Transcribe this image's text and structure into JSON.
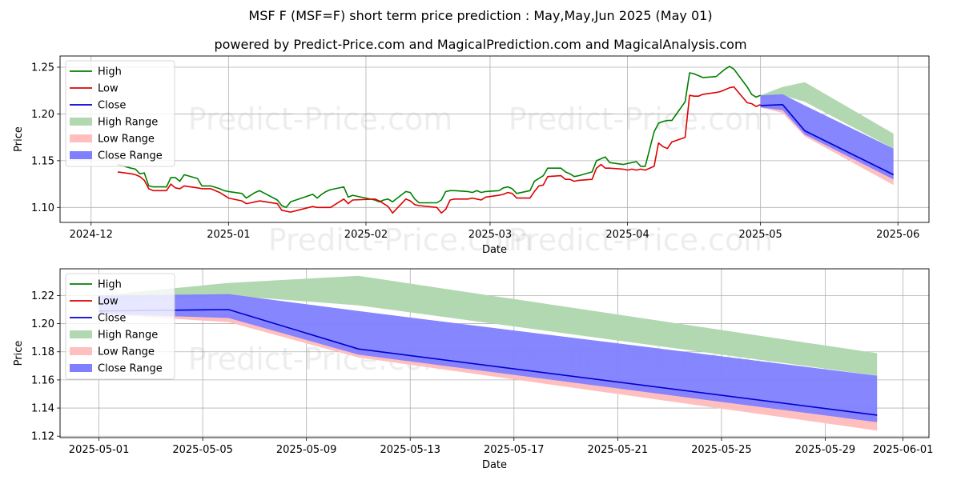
{
  "title": "MSF F (MSF=F) short term price prediction : May,May,Jun 2025 (May 01)",
  "subtitle": "powered by Predict-Price.com and MagicalPrediction.com and MagicalAnalysis.com",
  "watermark": "Predict-Price.com",
  "colors": {
    "high": "#008000",
    "low": "#dd0000",
    "close": "#0000cc",
    "high_range": "#b2d8b2",
    "low_range": "#ffbfbf",
    "close_range": "#7f7fff"
  },
  "chart_data": [
    {
      "type": "line",
      "xlabel": "Date",
      "ylabel": "Price",
      "xlim": [
        "2024-11-24",
        "2025-06-08"
      ],
      "ylim": [
        1.084,
        1.262
      ],
      "xticks": [
        "2024-12",
        "2025-01",
        "2025-02",
        "2025-03",
        "2025-04",
        "2025-05",
        "2025-06"
      ],
      "xtick_dates": [
        "2024-12-01",
        "2025-01-01",
        "2025-02-01",
        "2025-03-01",
        "2025-04-01",
        "2025-05-01",
        "2025-06-01"
      ],
      "yticks": [
        "1.10",
        "1.15",
        "1.20",
        "1.25"
      ],
      "ytick_values": [
        1.1,
        1.15,
        1.2,
        1.25
      ],
      "grid": true,
      "legend": "top-left",
      "legend_entries": [
        "High",
        "Low",
        "Close",
        "High Range",
        "Low Range",
        "Close Range"
      ],
      "series": [
        {
          "name": "High",
          "dates": [
            "2024-12-07",
            "2024-12-10",
            "2024-12-11",
            "2024-12-12",
            "2024-12-13",
            "2024-12-14",
            "2024-12-15",
            "2024-12-18",
            "2024-12-19",
            "2024-12-20",
            "2024-12-21",
            "2024-12-22",
            "2024-12-25",
            "2024-12-26",
            "2024-12-28",
            "2024-12-30",
            "2024-12-31",
            "2025-01-01",
            "2025-01-04",
            "2025-01-05",
            "2025-01-06",
            "2025-01-07",
            "2025-01-08",
            "2025-01-12",
            "2025-01-13",
            "2025-01-14",
            "2025-01-15",
            "2025-01-20",
            "2025-01-21",
            "2025-01-22",
            "2025-01-23",
            "2025-01-24",
            "2025-01-27",
            "2025-01-28",
            "2025-01-29",
            "2025-02-03",
            "2025-02-04",
            "2025-02-05",
            "2025-02-06",
            "2025-02-07",
            "2025-02-10",
            "2025-02-11",
            "2025-02-12",
            "2025-02-13",
            "2025-02-17",
            "2025-02-18",
            "2025-02-19",
            "2025-02-20",
            "2025-02-21",
            "2025-02-24",
            "2025-02-25",
            "2025-02-26",
            "2025-02-27",
            "2025-02-28",
            "2025-03-03",
            "2025-03-04",
            "2025-03-05",
            "2025-03-06",
            "2025-03-07",
            "2025-03-10",
            "2025-03-11",
            "2025-03-12",
            "2025-03-13",
            "2025-03-14",
            "2025-03-17",
            "2025-03-18",
            "2025-03-19",
            "2025-03-20",
            "2025-03-21",
            "2025-03-24",
            "2025-03-25",
            "2025-03-26",
            "2025-03-27",
            "2025-03-28",
            "2025-03-31",
            "2025-04-01",
            "2025-04-02",
            "2025-04-03",
            "2025-04-04",
            "2025-04-05",
            "2025-04-07",
            "2025-04-08",
            "2025-04-09",
            "2025-04-10",
            "2025-04-11",
            "2025-04-14",
            "2025-04-15",
            "2025-04-16",
            "2025-04-17",
            "2025-04-18",
            "2025-04-21",
            "2025-04-22",
            "2025-04-23",
            "2025-04-24",
            "2025-04-25",
            "2025-04-28",
            "2025-04-29",
            "2025-04-30",
            "2025-05-01"
          ],
          "values": [
            1.146,
            1.142,
            1.141,
            1.136,
            1.137,
            1.123,
            1.122,
            1.122,
            1.132,
            1.132,
            1.128,
            1.135,
            1.131,
            1.123,
            1.123,
            1.12,
            1.118,
            1.117,
            1.115,
            1.11,
            1.113,
            1.116,
            1.118,
            1.108,
            1.102,
            1.1,
            1.106,
            1.114,
            1.11,
            1.114,
            1.117,
            1.119,
            1.122,
            1.111,
            1.113,
            1.108,
            1.106,
            1.108,
            1.109,
            1.106,
            1.117,
            1.116,
            1.109,
            1.105,
            1.105,
            1.108,
            1.117,
            1.118,
            1.118,
            1.117,
            1.116,
            1.118,
            1.116,
            1.117,
            1.118,
            1.121,
            1.122,
            1.12,
            1.115,
            1.118,
            1.128,
            1.131,
            1.134,
            1.142,
            1.142,
            1.138,
            1.136,
            1.133,
            1.134,
            1.138,
            1.15,
            1.152,
            1.154,
            1.148,
            1.146,
            1.147,
            1.148,
            1.149,
            1.144,
            1.144,
            1.181,
            1.19,
            1.192,
            1.193,
            1.193,
            1.213,
            1.244,
            1.243,
            1.241,
            1.239,
            1.24,
            1.244,
            1.248,
            1.251,
            1.248,
            1.229,
            1.221,
            1.218,
            1.22
          ]
        },
        {
          "name": "Low",
          "dates": [
            "2024-12-07",
            "2024-12-10",
            "2024-12-11",
            "2024-12-12",
            "2024-12-13",
            "2024-12-14",
            "2024-12-15",
            "2024-12-18",
            "2024-12-19",
            "2024-12-20",
            "2024-12-21",
            "2024-12-22",
            "2024-12-25",
            "2024-12-26",
            "2024-12-28",
            "2024-12-30",
            "2024-12-31",
            "2025-01-01",
            "2025-01-04",
            "2025-01-05",
            "2025-01-06",
            "2025-01-07",
            "2025-01-08",
            "2025-01-12",
            "2025-01-13",
            "2025-01-14",
            "2025-01-15",
            "2025-01-20",
            "2025-01-21",
            "2025-01-22",
            "2025-01-23",
            "2025-01-24",
            "2025-01-27",
            "2025-01-28",
            "2025-01-29",
            "2025-02-03",
            "2025-02-04",
            "2025-02-05",
            "2025-02-06",
            "2025-02-07",
            "2025-02-10",
            "2025-02-11",
            "2025-02-12",
            "2025-02-13",
            "2025-02-17",
            "2025-02-18",
            "2025-02-19",
            "2025-02-20",
            "2025-02-21",
            "2025-02-24",
            "2025-02-25",
            "2025-02-26",
            "2025-02-27",
            "2025-02-28",
            "2025-03-03",
            "2025-03-04",
            "2025-03-05",
            "2025-03-06",
            "2025-03-07",
            "2025-03-10",
            "2025-03-11",
            "2025-03-12",
            "2025-03-13",
            "2025-03-14",
            "2025-03-17",
            "2025-03-18",
            "2025-03-19",
            "2025-03-20",
            "2025-03-21",
            "2025-03-24",
            "2025-03-25",
            "2025-03-26",
            "2025-03-27",
            "2025-03-28",
            "2025-03-31",
            "2025-04-01",
            "2025-04-02",
            "2025-04-03",
            "2025-04-04",
            "2025-04-05",
            "2025-04-07",
            "2025-04-08",
            "2025-04-09",
            "2025-04-10",
            "2025-04-11",
            "2025-04-14",
            "2025-04-15",
            "2025-04-16",
            "2025-04-17",
            "2025-04-18",
            "2025-04-21",
            "2025-04-22",
            "2025-04-23",
            "2025-04-24",
            "2025-04-25",
            "2025-04-28",
            "2025-04-29",
            "2025-04-30",
            "2025-05-01"
          ],
          "values": [
            1.138,
            1.136,
            1.135,
            1.133,
            1.129,
            1.12,
            1.118,
            1.118,
            1.125,
            1.121,
            1.12,
            1.123,
            1.121,
            1.12,
            1.12,
            1.116,
            1.113,
            1.11,
            1.107,
            1.104,
            1.105,
            1.106,
            1.107,
            1.104,
            1.097,
            1.096,
            1.095,
            1.101,
            1.1,
            1.1,
            1.1,
            1.1,
            1.109,
            1.104,
            1.108,
            1.109,
            1.107,
            1.104,
            1.101,
            1.094,
            1.109,
            1.107,
            1.103,
            1.102,
            1.1,
            1.094,
            1.098,
            1.108,
            1.109,
            1.109,
            1.11,
            1.109,
            1.108,
            1.111,
            1.113,
            1.114,
            1.116,
            1.115,
            1.11,
            1.11,
            1.117,
            1.123,
            1.124,
            1.133,
            1.134,
            1.13,
            1.13,
            1.128,
            1.129,
            1.13,
            1.142,
            1.146,
            1.142,
            1.142,
            1.141,
            1.14,
            1.141,
            1.14,
            1.141,
            1.14,
            1.144,
            1.169,
            1.165,
            1.163,
            1.17,
            1.175,
            1.22,
            1.219,
            1.219,
            1.221,
            1.223,
            1.224,
            1.226,
            1.228,
            1.229,
            1.212,
            1.211,
            1.208,
            1.21
          ]
        },
        {
          "name": "Close",
          "dates": [
            "2025-05-01",
            "2025-05-06",
            "2025-05-11",
            "2025-05-31"
          ],
          "values": [
            1.209,
            1.21,
            1.182,
            1.135
          ]
        }
      ],
      "ranges": [
        {
          "name": "High Range",
          "dates": [
            "2025-05-01",
            "2025-05-06",
            "2025-05-11",
            "2025-05-31"
          ],
          "upper": [
            1.22,
            1.229,
            1.234,
            1.179
          ],
          "lower": [
            1.215,
            1.22,
            1.213,
            1.163
          ]
        },
        {
          "name": "Low Range",
          "dates": [
            "2025-05-01",
            "2025-05-06",
            "2025-05-11",
            "2025-05-31"
          ],
          "upper": [
            1.209,
            1.207,
            1.181,
            1.135
          ],
          "lower": [
            1.207,
            1.201,
            1.176,
            1.124
          ]
        },
        {
          "name": "Close Range",
          "dates": [
            "2025-05-01",
            "2025-05-06",
            "2025-05-11",
            "2025-05-31"
          ],
          "upper": [
            1.22,
            1.221,
            1.209,
            1.163
          ],
          "lower": [
            1.207,
            1.204,
            1.178,
            1.13
          ]
        }
      ]
    },
    {
      "type": "line",
      "xlabel": "Date",
      "ylabel": "Price",
      "xlim": [
        "2025-04-29T12:00",
        "2025-06-02T00:00"
      ],
      "ylim": [
        1.119,
        1.239
      ],
      "xticks": [
        "2025-05-01",
        "2025-05-05",
        "2025-05-09",
        "2025-05-13",
        "2025-05-17",
        "2025-05-21",
        "2025-05-25",
        "2025-05-29",
        "2025-06-01"
      ],
      "xtick_dates": [
        "2025-05-01",
        "2025-05-05",
        "2025-05-09",
        "2025-05-13",
        "2025-05-17",
        "2025-05-21",
        "2025-05-25",
        "2025-05-29",
        "2025-06-01"
      ],
      "yticks": [
        "1.12",
        "1.14",
        "1.16",
        "1.18",
        "1.20",
        "1.22"
      ],
      "ytick_values": [
        1.12,
        1.14,
        1.16,
        1.18,
        1.2,
        1.22
      ],
      "grid": true,
      "legend": "top-left",
      "legend_entries": [
        "High",
        "Low",
        "Close",
        "High Range",
        "Low Range",
        "Close Range"
      ],
      "series": [
        {
          "name": "High",
          "dates": [],
          "values": []
        },
        {
          "name": "Low",
          "dates": [],
          "values": []
        },
        {
          "name": "Close",
          "dates": [
            "2025-05-01",
            "2025-05-06",
            "2025-05-11",
            "2025-05-31"
          ],
          "values": [
            1.209,
            1.21,
            1.182,
            1.135
          ]
        }
      ],
      "ranges": [
        {
          "name": "High Range",
          "dates": [
            "2025-05-01",
            "2025-05-06",
            "2025-05-11",
            "2025-05-31"
          ],
          "upper": [
            1.22,
            1.229,
            1.234,
            1.179
          ],
          "lower": [
            1.215,
            1.22,
            1.213,
            1.163
          ]
        },
        {
          "name": "Low Range",
          "dates": [
            "2025-05-01",
            "2025-05-06",
            "2025-05-11",
            "2025-05-31"
          ],
          "upper": [
            1.209,
            1.207,
            1.181,
            1.135
          ],
          "lower": [
            1.207,
            1.201,
            1.176,
            1.124
          ]
        },
        {
          "name": "Close Range",
          "dates": [
            "2025-05-01",
            "2025-05-06",
            "2025-05-11",
            "2025-05-31"
          ],
          "upper": [
            1.22,
            1.221,
            1.209,
            1.163
          ],
          "lower": [
            1.207,
            1.204,
            1.178,
            1.13
          ]
        }
      ]
    }
  ]
}
